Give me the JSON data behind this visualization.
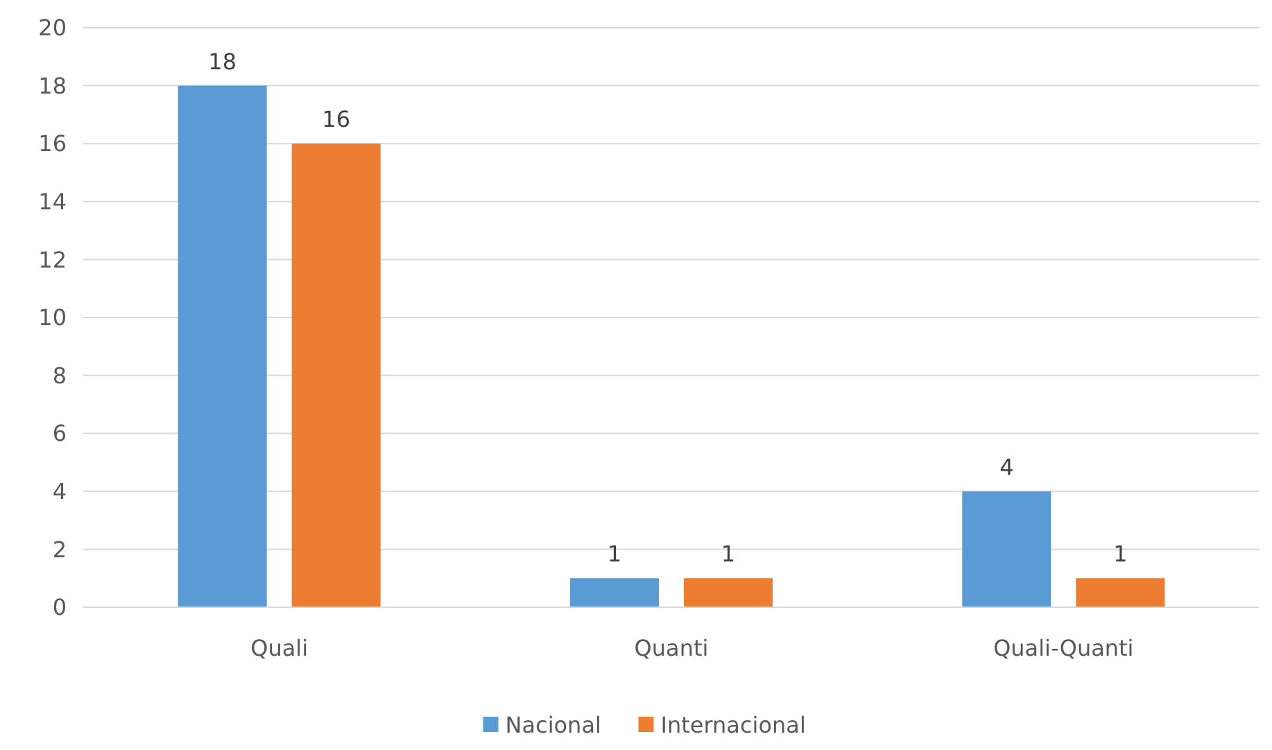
{
  "chart_data": {
    "type": "bar",
    "categories": [
      "Quali",
      "Quanti",
      "Quali-Quanti"
    ],
    "series": [
      {
        "name": "Nacional",
        "color": "#5b9bd5",
        "values": [
          18,
          1,
          4
        ]
      },
      {
        "name": "Internacional",
        "color": "#ed7d31",
        "values": [
          16,
          1,
          1
        ]
      }
    ],
    "ylim": [
      0,
      20
    ],
    "yticks": [
      0,
      2,
      4,
      6,
      8,
      10,
      12,
      14,
      16,
      18,
      20
    ],
    "grid": "y",
    "legend": "bottom",
    "data_labels": true
  }
}
